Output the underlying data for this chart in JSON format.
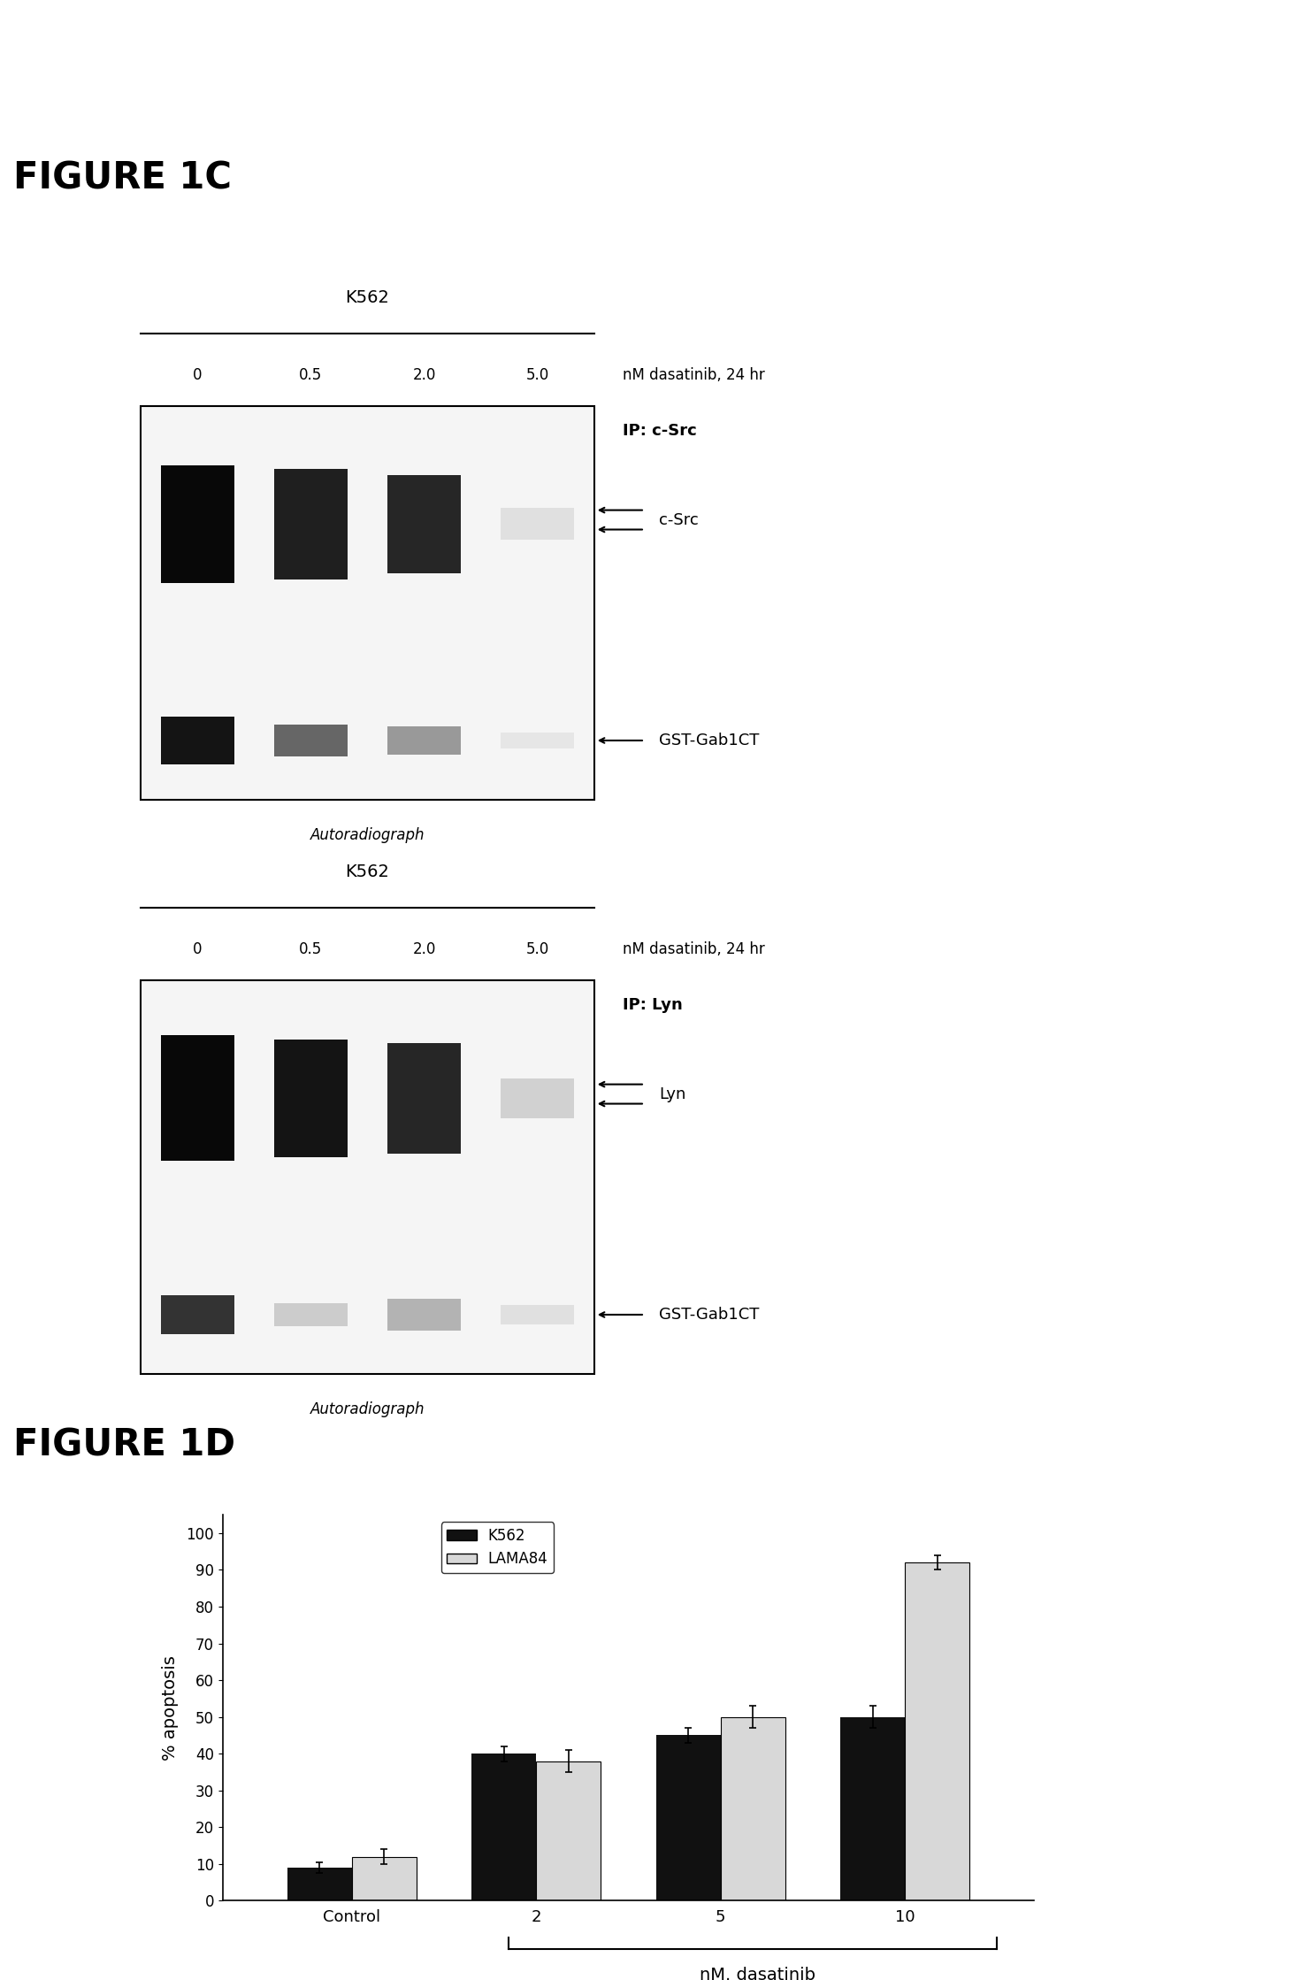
{
  "figure_label_1c": "FIGURE 1C",
  "figure_label_1d": "FIGURE 1D",
  "blot1_title": "K562",
  "blot1_right_text1": "nM dasatinib, 24 hr",
  "blot1_right_text2": "IP: c-Src",
  "blot1_band1_label": "c-Src",
  "blot1_band2_label": "GST-Gab1CT",
  "blot1_caption": "Autoradiograph",
  "blot2_title": "K562",
  "blot2_right_text1": "nM dasatinib, 24 hr",
  "blot2_right_text2": "IP: Lyn",
  "blot2_band1_label": "Lyn",
  "blot2_band2_label": "GST-Gab1CT",
  "blot2_caption": "Autoradiograph",
  "doses": [
    "0",
    "0.5",
    "2.0",
    "5.0"
  ],
  "bar_categories": [
    "Control",
    "2",
    "5",
    "10"
  ],
  "bar_xlabel_main": "nM. dasatinib",
  "bar_ylabel": "% apoptosis",
  "bar_yticks": [
    0,
    10,
    20,
    30,
    40,
    50,
    60,
    70,
    80,
    90,
    100
  ],
  "bar_k562_values": [
    9,
    40,
    45,
    50
  ],
  "bar_k562_errors": [
    1.5,
    2,
    2,
    3
  ],
  "bar_lama84_values": [
    12,
    38,
    50,
    92
  ],
  "bar_lama84_errors": [
    2,
    3,
    3,
    2
  ],
  "legend_k562_label": "K562",
  "legend_lama84_label": "LAMA84",
  "k562_color": "#111111",
  "lama84_color": "#d8d8d8",
  "bg_color": "#ffffff",
  "text_color": "#000000"
}
